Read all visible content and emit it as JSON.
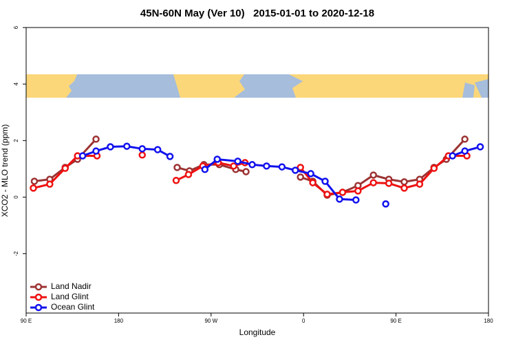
{
  "chart_data": {
    "type": "line",
    "title": "45N-60N May (Ver 10)   2015-01-01 to 2020-12-18",
    "xlabel": "Longitude",
    "ylabel": "XCO2 - MLO trend (ppm)",
    "xlim": [
      90,
      540
    ],
    "ylim": [
      -4.1,
      6
    ],
    "xticks": [
      {
        "value": 90,
        "label": "90 E"
      },
      {
        "value": 180,
        "label": "180"
      },
      {
        "value": 270,
        "label": "90 W"
      },
      {
        "value": 360,
        "label": "0"
      },
      {
        "value": 450,
        "label": "90 E"
      },
      {
        "value": 540,
        "label": "180"
      }
    ],
    "yticks": [
      -2,
      0,
      2,
      4,
      6
    ],
    "legend": "lower left",
    "series": [
      {
        "name": "Land Nadir",
        "color": "#9c3232",
        "x": [
          98,
          113,
          128,
          140,
          158,
          null,
          237,
          249,
          263,
          278,
          294,
          304,
          null,
          357,
          369,
          383,
          398,
          413,
          428,
          443,
          458,
          473,
          487,
          499,
          517
        ],
        "values": [
          0.56,
          0.63,
          1.05,
          1.34,
          2.05,
          null,
          1.05,
          0.93,
          1.15,
          1.15,
          0.98,
          0.9,
          null,
          0.71,
          0.56,
          0.07,
          0.17,
          0.41,
          0.78,
          0.63,
          0.54,
          0.63,
          1.05,
          1.34,
          2.05
        ]
      },
      {
        "name": "Land Glint",
        "color": "#ee1111",
        "x": [
          97,
          113,
          128,
          140,
          159,
          null,
          203,
          null,
          236,
          248,
          262,
          277,
          292,
          303,
          null,
          357,
          369,
          383,
          398,
          413,
          428,
          443,
          458,
          473,
          487,
          501,
          519
        ],
        "values": [
          0.32,
          0.46,
          1.02,
          1.46,
          1.46,
          null,
          1.49,
          null,
          0.59,
          0.8,
          1.1,
          1.22,
          1.1,
          1.22,
          null,
          1.05,
          0.51,
          0.1,
          0.17,
          0.22,
          0.51,
          0.49,
          0.32,
          0.46,
          1.02,
          1.46,
          1.46
        ]
      },
      {
        "name": "Ocean Glint",
        "color": "#1111ee",
        "x": [
          145,
          158,
          172,
          188,
          203,
          218,
          230,
          null,
          264,
          276,
          296,
          310,
          324,
          339,
          352,
          367,
          381,
          395,
          411,
          null,
          440,
          null,
          505,
          517,
          532
        ],
        "values": [
          1.46,
          1.63,
          1.78,
          1.8,
          1.71,
          1.68,
          1.44,
          null,
          0.98,
          1.34,
          1.27,
          1.15,
          1.1,
          1.07,
          0.95,
          0.83,
          0.56,
          -0.07,
          -0.1,
          null,
          -0.24,
          null,
          1.46,
          1.63,
          1.78
        ]
      }
    ]
  }
}
